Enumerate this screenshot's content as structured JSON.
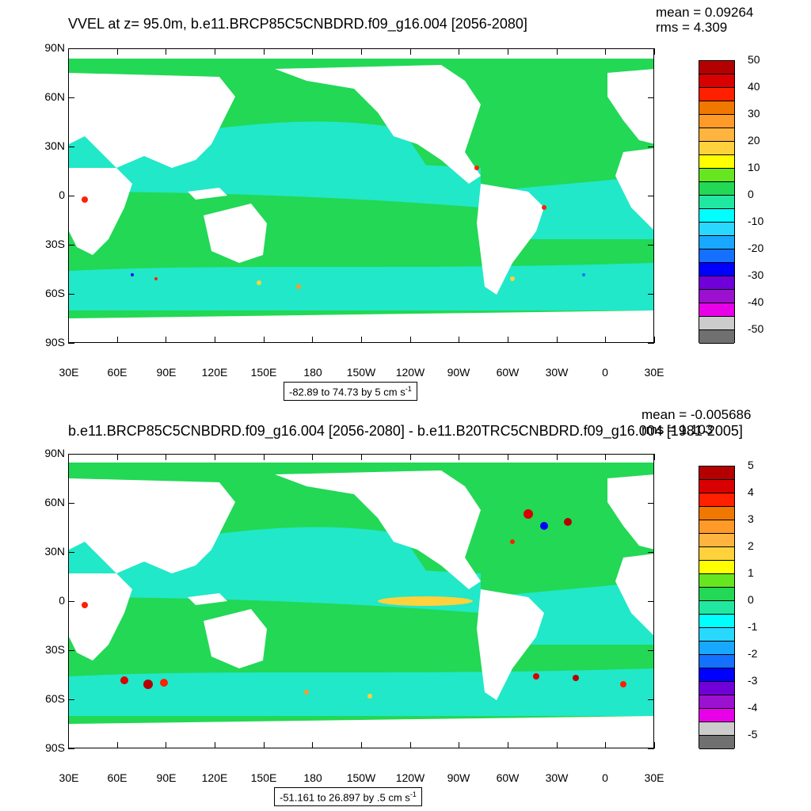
{
  "panels": [
    {
      "title": "VVEL at z=  95.0m, b.e11.BRCP85C5CNBDRD.f09_g16.004 [2056-2080]",
      "mean_text": "mean = 0.09264",
      "rms_text": "rms = 4.309",
      "range_text": "-82.89 to 74.73 by 5 cm s",
      "range_sup": "-1"
    },
    {
      "title": "b.e11.BRCP85C5CNBDRD.f09_g16.004 [2056-2080] - b.e11.B20TRC5CNBDRD.f09_g16.004 [1981-2005]",
      "mean_text": "mean = -0.005686",
      "rms_text": "rms = 1.103",
      "range_text": "-51.161 to 26.897 by .5 cm s",
      "range_sup": "-1"
    }
  ],
  "chart_data": [
    {
      "type": "heatmap",
      "title": "VVEL at z=  95.0m, b.e11.BRCP85C5CNBDRD.f09_g16.004 [2056-2080]",
      "lat_ticks": [
        "90N",
        "60N",
        "30N",
        "0",
        "30S",
        "60S",
        "90S"
      ],
      "lon_ticks": [
        "30E",
        "60E",
        "90E",
        "120E",
        "150E",
        "180",
        "150W",
        "120W",
        "90W",
        "60W",
        "30W",
        "0",
        "30E"
      ],
      "colorbar_labels": [
        "50",
        "40",
        "30",
        "20",
        "10",
        "0",
        "-10",
        "-20",
        "-30",
        "-40",
        "-50"
      ],
      "colorbar_colors": [
        "#b40000",
        "#d80000",
        "#ff2000",
        "#f07800",
        "#ff9a28",
        "#ffb440",
        "#ffd23c",
        "#ffff00",
        "#66e61e",
        "#22d855",
        "#21e8a0",
        "#00ffff",
        "#28d8ff",
        "#18a8ff",
        "#1470ff",
        "#0000ff",
        "#7000d8",
        "#9c10d0",
        "#e800e8",
        "#cccccc",
        "#707070"
      ],
      "mean": 0.09264,
      "rms": 4.309,
      "contour_min": -82.89,
      "contour_max": 74.73,
      "contour_interval": 5,
      "units": "cm s-1"
    },
    {
      "type": "heatmap",
      "title": "b.e11.BRCP85C5CNBDRD.f09_g16.004 [2056-2080] - b.e11.B20TRC5CNBDRD.f09_g16.004 [1981-2005]",
      "lat_ticks": [
        "90N",
        "60N",
        "30N",
        "0",
        "30S",
        "60S",
        "90S"
      ],
      "lon_ticks": [
        "30E",
        "60E",
        "90E",
        "120E",
        "150E",
        "180",
        "150W",
        "120W",
        "90W",
        "60W",
        "30W",
        "0",
        "30E"
      ],
      "colorbar_labels": [
        "5",
        "4",
        "3",
        "2",
        "1",
        "0",
        "-1",
        "-2",
        "-3",
        "-4",
        "-5"
      ],
      "colorbar_colors": [
        "#b40000",
        "#d80000",
        "#ff2000",
        "#f07800",
        "#ff9a28",
        "#ffb440",
        "#ffd23c",
        "#ffff00",
        "#66e61e",
        "#22d855",
        "#21e8a0",
        "#00ffff",
        "#28d8ff",
        "#18a8ff",
        "#1470ff",
        "#0000ff",
        "#7000d8",
        "#9c10d0",
        "#e800e8",
        "#cccccc",
        "#707070"
      ],
      "mean": -0.005686,
      "rms": 1.103,
      "contour_min": -51.161,
      "contour_max": 26.897,
      "contour_interval": 0.5,
      "units": "cm s-1"
    }
  ],
  "colors": {
    "ocean_base": "#22d855",
    "ocean_cyan": "#21e8c8",
    "land": "#ffffff"
  }
}
